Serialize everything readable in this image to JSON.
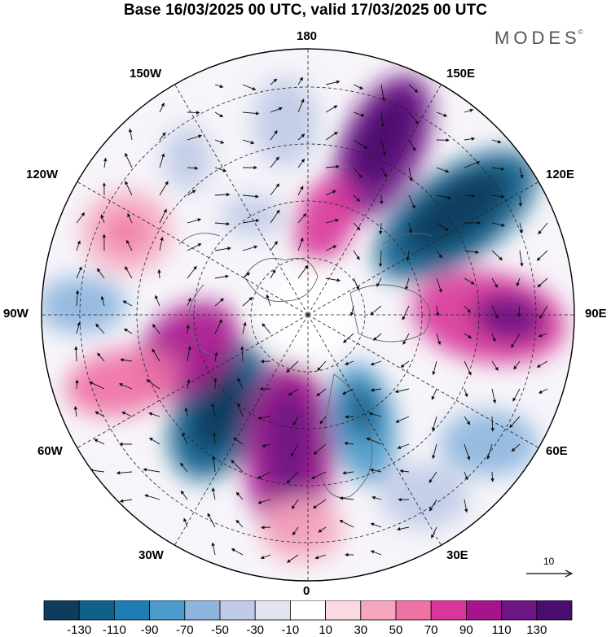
{
  "title": "Base 16/03/2025 00 UTC, valid 17/03/2025 00 UTC",
  "brand": "MODES",
  "brand_mark": "©",
  "longitude_labels": {
    "lon_180": "180",
    "lon_150w": "150W",
    "lon_150e": "150E",
    "lon_120w": "120W",
    "lon_120e": "120E",
    "lon_90w": "90W",
    "lon_90e": "90E",
    "lon_60w": "60W",
    "lon_60e": "60E",
    "lon_30w": "30W",
    "lon_30e": "30E",
    "lon_0": "0"
  },
  "reference_vector": {
    "label": "10"
  },
  "colorbar": {
    "levels": [
      "-130",
      "-110",
      "-90",
      "-70",
      "-50",
      "-30",
      "-10",
      "10",
      "30",
      "50",
      "70",
      "90",
      "110",
      "130"
    ],
    "colors": [
      "#0d3c5c",
      "#115f8b",
      "#1e7db3",
      "#4c9bcb",
      "#8db5dd",
      "#c0cbe6",
      "#e3e4f1",
      "#ffffff",
      "#fbd9e0",
      "#f5a7bd",
      "#ef72a5",
      "#d93699",
      "#a7138c",
      "#6d1584",
      "#4a0f6e"
    ]
  }
}
